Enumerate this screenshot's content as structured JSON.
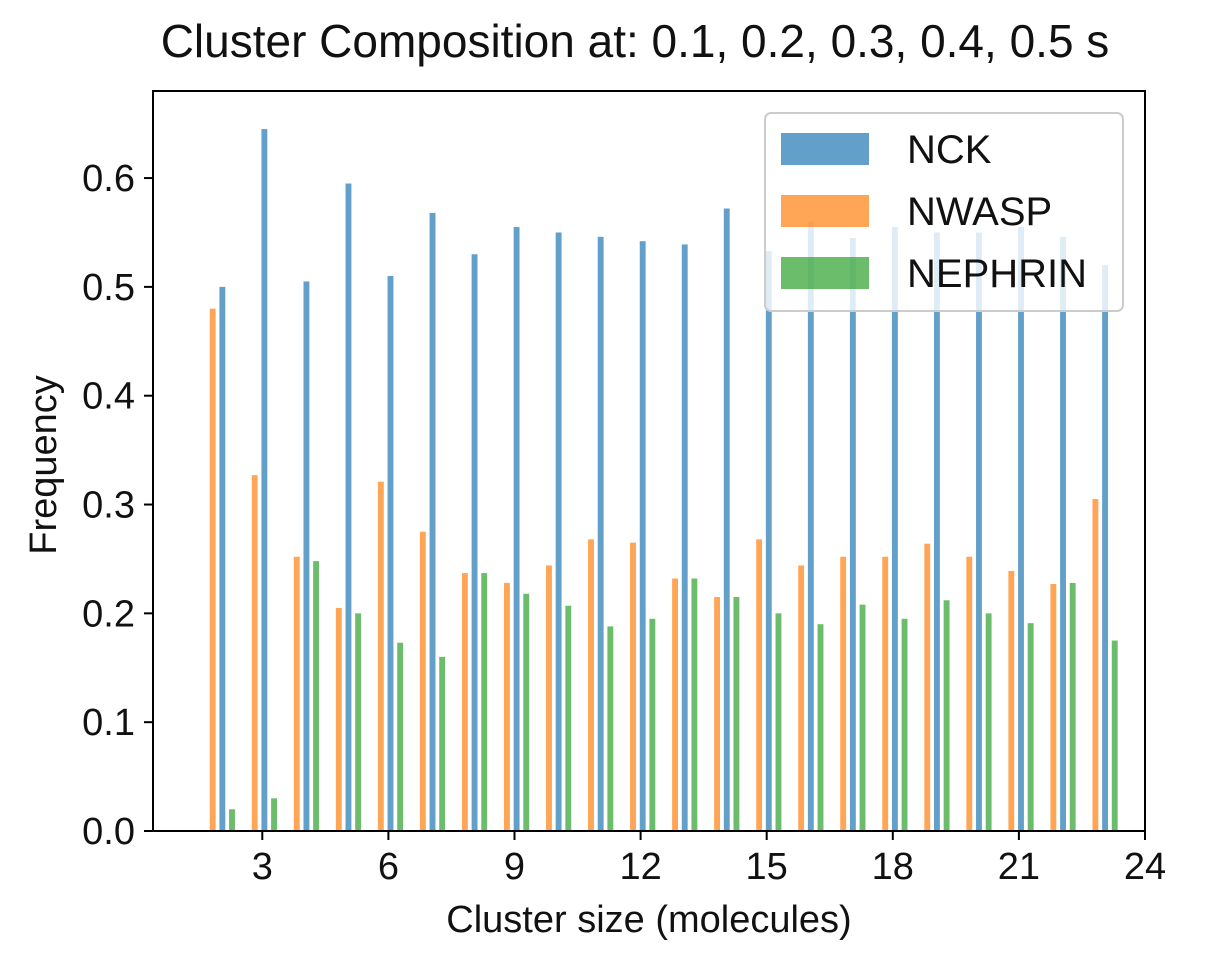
{
  "chart_data": {
    "type": "bar",
    "title": "Cluster Composition at: 0.1, 0.2, 0.3, 0.4, 0.5 s",
    "xlabel": "Cluster size (molecules)",
    "ylabel": "Frequency",
    "xlim": [
      0.4,
      24
    ],
    "ylim": [
      0,
      0.68
    ],
    "xticks": [
      3,
      6,
      9,
      12,
      15,
      18,
      21,
      24
    ],
    "yticks": [
      0.0,
      0.1,
      0.2,
      0.3,
      0.4,
      0.5,
      0.6
    ],
    "ytick_labels": [
      "0.0",
      "0.1",
      "0.2",
      "0.3",
      "0.4",
      "0.5",
      "0.6"
    ],
    "grid": false,
    "legend_position": "top-right",
    "x": [
      2,
      3,
      4,
      5,
      6,
      7,
      8,
      9,
      10,
      11,
      12,
      13,
      14,
      15,
      16,
      17,
      18,
      19,
      20,
      21,
      22,
      23
    ],
    "series": [
      {
        "name": "NCK",
        "color": "#1f77b4",
        "values": [
          0.5,
          0.645,
          0.505,
          0.595,
          0.51,
          0.568,
          0.53,
          0.555,
          0.55,
          0.546,
          0.542,
          0.539,
          0.572,
          0.533,
          0.56,
          0.545,
          0.555,
          0.55,
          0.55,
          0.555,
          0.546,
          0.52
        ]
      },
      {
        "name": "NWASP",
        "color": "#ff7f0e",
        "values": [
          0.48,
          0.327,
          0.252,
          0.205,
          0.321,
          0.275,
          0.237,
          0.228,
          0.244,
          0.268,
          0.265,
          0.232,
          0.215,
          0.268,
          0.244,
          0.252,
          0.252,
          0.264,
          0.252,
          0.239,
          0.227,
          0.305
        ]
      },
      {
        "name": "NEPHRIN",
        "color": "#2ca02c",
        "values": [
          0.02,
          0.03,
          0.248,
          0.2,
          0.173,
          0.16,
          0.237,
          0.218,
          0.207,
          0.188,
          0.195,
          0.232,
          0.215,
          0.2,
          0.19,
          0.208,
          0.195,
          0.212,
          0.2,
          0.191,
          0.228,
          0.175
        ]
      }
    ]
  }
}
